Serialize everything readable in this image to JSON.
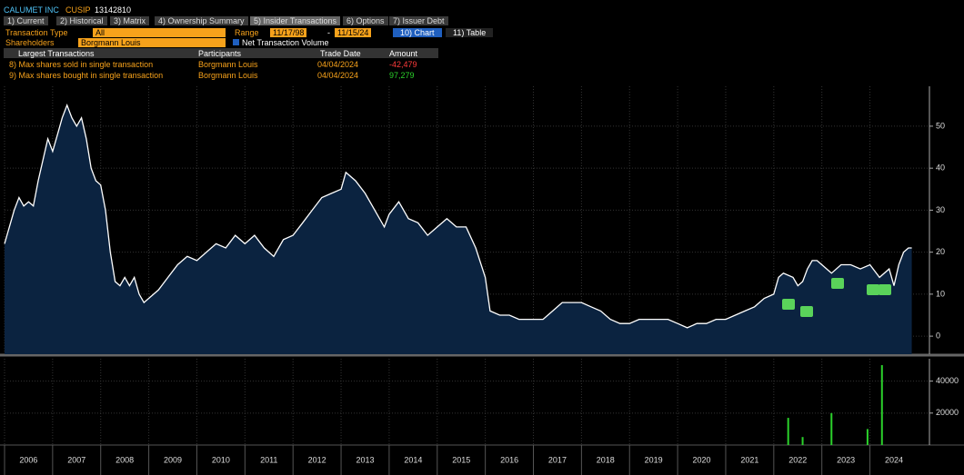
{
  "header": {
    "company": "CALUMET INC",
    "cusip_label": "CUSIP",
    "cusip": "13142810"
  },
  "tabs": [
    "1) Current",
    "2) Historical",
    "3) Matrix",
    "4) Ownership Summary",
    "5) Insider Transactions",
    "6) Options",
    "7) Issuer Debt"
  ],
  "controls": {
    "transaction_type_label": "Transaction Type",
    "transaction_type": "All",
    "range_label": "Range",
    "range_start": "11/17/98",
    "range_sep": "-",
    "range_end": "11/15/24",
    "chart_button": "10) Chart",
    "table_button": "11) Table",
    "shareholders_label": "Shareholders",
    "shareholder": "Borgmann Louis",
    "net_volume": "Net Transaction Volume"
  },
  "table": {
    "columns": [
      "Largest Transactions",
      "Participants",
      "Trade Date",
      "Amount"
    ],
    "rows": [
      [
        "8) Max shares sold in single transaction",
        "Borgmann Louis",
        "04/04/2024",
        "-42,479"
      ],
      [
        "9) Max shares bought in single transaction",
        "Borgmann Louis",
        "04/04/2024",
        "97,279"
      ]
    ]
  },
  "chart_data": [
    {
      "type": "line",
      "color": "#ffffff",
      "fill": "#0b2340",
      "x": [
        2006.0,
        2006.1,
        2006.2,
        2006.3,
        2006.4,
        2006.5,
        2006.6,
        2006.7,
        2006.8,
        2006.9,
        2007.0,
        2007.1,
        2007.2,
        2007.3,
        2007.4,
        2007.5,
        2007.6,
        2007.7,
        2007.8,
        2007.9,
        2008.0,
        2008.1,
        2008.2,
        2008.3,
        2008.4,
        2008.5,
        2008.6,
        2008.7,
        2008.8,
        2008.9,
        2009.0,
        2009.2,
        2009.4,
        2009.6,
        2009.8,
        2010.0,
        2010.2,
        2010.4,
        2010.6,
        2010.8,
        2011.0,
        2011.2,
        2011.4,
        2011.6,
        2011.8,
        2012.0,
        2012.2,
        2012.4,
        2012.6,
        2012.8,
        2013.0,
        2013.1,
        2013.3,
        2013.5,
        2013.7,
        2013.9,
        2014.0,
        2014.2,
        2014.4,
        2014.6,
        2014.8,
        2015.0,
        2015.2,
        2015.4,
        2015.6,
        2015.8,
        2016.0,
        2016.1,
        2016.3,
        2016.5,
        2016.7,
        2016.9,
        2017.0,
        2017.2,
        2017.4,
        2017.6,
        2017.8,
        2018.0,
        2018.2,
        2018.4,
        2018.6,
        2018.8,
        2019.0,
        2019.2,
        2019.5,
        2019.8,
        2020.0,
        2020.2,
        2020.4,
        2020.6,
        2020.8,
        2021.0,
        2021.2,
        2021.4,
        2021.6,
        2021.8,
        2022.0,
        2022.1,
        2022.2,
        2022.4,
        2022.5,
        2022.6,
        2022.7,
        2022.8,
        2022.9,
        2023.0,
        2023.2,
        2023.4,
        2023.6,
        2023.8,
        2024.0,
        2024.2,
        2024.4,
        2024.5,
        2024.6,
        2024.7,
        2024.8,
        2024.87
      ],
      "values": [
        22,
        26,
        30,
        33,
        31,
        32,
        31,
        37,
        42,
        47,
        44,
        48,
        52,
        55,
        52,
        50,
        52,
        47,
        40,
        37,
        36,
        30,
        20,
        13,
        12,
        14,
        12,
        14,
        10,
        8,
        9,
        11,
        14,
        17,
        19,
        18,
        20,
        22,
        21,
        24,
        22,
        24,
        21,
        19,
        23,
        24,
        27,
        30,
        33,
        34,
        35,
        39,
        37,
        34,
        30,
        26,
        29,
        32,
        28,
        27,
        24,
        26,
        28,
        26,
        26,
        21,
        14,
        6,
        5,
        5,
        4,
        4,
        4,
        4,
        6,
        8,
        8,
        8,
        7,
        6,
        4,
        3,
        3,
        4,
        4,
        4,
        3,
        2,
        3,
        3,
        4,
        4,
        5,
        6,
        7,
        9,
        10,
        14,
        15,
        14,
        12,
        13,
        16,
        18,
        18,
        17,
        15,
        17,
        17,
        16,
        17,
        14,
        16,
        12,
        17,
        20,
        21,
        21
      ],
      "xlim": [
        2006,
        2025.2
      ],
      "xticks": [
        2006,
        2007,
        2008,
        2009,
        2010,
        2011,
        2012,
        2013,
        2014,
        2015,
        2016,
        2017,
        2018,
        2019,
        2020,
        2021,
        2022,
        2023,
        2024
      ],
      "ylim": [
        -4.3,
        59.5
      ],
      "yticks": [
        0,
        10,
        20,
        30,
        40,
        50
      ],
      "grid": true
    },
    {
      "type": "bar",
      "color": "#2bd12b",
      "x": [
        2022.3,
        2022.6,
        2023.2,
        2023.95,
        2024.25
      ],
      "values": [
        17000,
        5000,
        20000,
        10000,
        50000
      ],
      "xlim": [
        2006,
        2025.2
      ],
      "ylim": [
        0,
        54000
      ],
      "yticks": [
        20000,
        40000
      ],
      "grid": true
    }
  ]
}
